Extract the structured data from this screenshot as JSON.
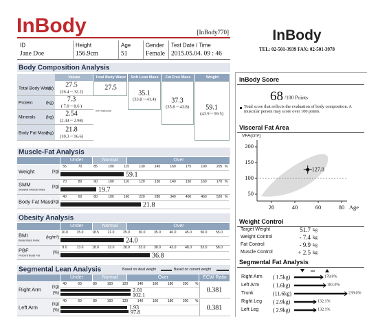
{
  "header": {
    "logo": "InBody",
    "model": "[InBody770]",
    "logo_right": "InBody",
    "contact": "TEL: 02-501-3939   FAX: 02-501-3978"
  },
  "patient": {
    "labels": [
      "ID",
      "Height",
      "Age",
      "Gender",
      "Test Date / Time"
    ],
    "values": [
      "Jane Doe",
      "156.9cm",
      "51",
      "Female",
      "2015.05.04. 09 : 46"
    ]
  },
  "body_composition": {
    "title": "Body Composition Analysis",
    "columns": [
      "Values",
      "Total Body Water",
      "Soft Lean Mass",
      "Fat Free Mass",
      "Weight"
    ],
    "rows": [
      {
        "name": "Total Body Water",
        "unit": "(L)",
        "value": "27.5",
        "range": "(26.4 ~ 32.2)"
      },
      {
        "name": "Protein",
        "unit": "(kg)",
        "value": "7.3",
        "range": "( 7.0 ~ 8.6 )"
      },
      {
        "name": "Minerals",
        "unit": "(kg)",
        "value": "2.54",
        "range": "(2.44 ~ 2.98)"
      },
      {
        "name": "Body Fat Mass",
        "unit": "(kg)",
        "value": "21.8",
        "range": "(10.3 ~ 16.6)"
      }
    ],
    "tbw": "27.5",
    "slm": {
      "value": "35.1",
      "range": "(33.8 ~ 41.4)"
    },
    "ffm": {
      "value": "37.3",
      "range": "(35.8 ~ 43.8)"
    },
    "weight": {
      "value": "59.1",
      "range": "(43.9 ~ 59.5)"
    },
    "note": "non-osseous"
  },
  "muscle_fat": {
    "title": "Muscle-Fat Analysis",
    "bands": [
      "Under",
      "Normal",
      "Over"
    ],
    "rows": [
      {
        "name": "Weight",
        "unit": "(kg)",
        "scale": [
          "55",
          "70",
          "85",
          "100",
          "115",
          "130",
          "145",
          "160",
          "175",
          "190",
          "205"
        ],
        "pct": "%",
        "value": "59.1"
      },
      {
        "name": "SMM",
        "sub": "Skeletal Muscle Mass",
        "unit": "(kg)",
        "scale": [
          "70",
          "80",
          "90",
          "100",
          "110",
          "120",
          "130",
          "140",
          "150",
          "160",
          "170"
        ],
        "pct": "%",
        "value": "19.7"
      },
      {
        "name": "Body Fat Mass",
        "unit": "(kg)",
        "scale": [
          "40",
          "60",
          "80",
          "100",
          "160",
          "220",
          "280",
          "340",
          "400",
          "460",
          "520"
        ],
        "pct": "%",
        "value": "21.8"
      }
    ]
  },
  "obesity": {
    "title": "Obesity Analysis",
    "bands": [
      "Under",
      "Normal",
      "Over"
    ],
    "rows": [
      {
        "name": "BMI",
        "sub": "Body Mass Index",
        "unit": "(kg/m²)",
        "scale": [
          "10.0",
          "15.0",
          "18.5",
          "21.0",
          "25.0",
          "30.0",
          "35.0",
          "40.0",
          "45.0",
          "50.0",
          "55.0"
        ],
        "value": "24.0"
      },
      {
        "name": "PBF",
        "sub": "Percent Body Fat",
        "unit": "(%)",
        "scale": [
          "8.0",
          "13.0",
          "18.0",
          "23.0",
          "28.0",
          "33.0",
          "38.0",
          "43.0",
          "48.0",
          "53.0",
          "58.0"
        ],
        "value": "36.8"
      }
    ]
  },
  "segmental_lean": {
    "title": "Segmental Lean Analysis",
    "legend": [
      "Based on ideal weight",
      "Based on current weight"
    ],
    "bands": [
      "Under",
      "Normal",
      "Over",
      "ECW Ratio"
    ],
    "rows": [
      {
        "name": "Right Arm",
        "units": [
          "(kg)",
          "(%)"
        ],
        "scale": [
          "40",
          "60",
          "80",
          "100",
          "120",
          "140",
          "160",
          "180",
          "200"
        ],
        "pct": "%",
        "values": [
          "2.01",
          "102.1"
        ],
        "ecw": "0.381"
      },
      {
        "name": "Left Arm",
        "units": [
          "(kg)",
          "(%)"
        ],
        "scale": [
          "40",
          "60",
          "80",
          "100",
          "120",
          "140",
          "160",
          "180",
          "200"
        ],
        "pct": "%",
        "values": [
          "1.93",
          "97.8"
        ],
        "ecw": "0.381"
      }
    ]
  },
  "inbody_score": {
    "title": "InBody Score",
    "score": "68",
    "max": "/100 Points",
    "note": "Total score that reflects the evaluation of body composition. A muscular person may score over 100 points."
  },
  "visceral_fat": {
    "title": "Visceral Fat Area",
    "y_label": "VFA(cm²)",
    "x_label": "Age",
    "yticks": [
      200,
      150,
      100,
      50
    ],
    "xticks": [
      20,
      40,
      60,
      80
    ],
    "value": 127.8
  },
  "weight_control": {
    "title": "Weight Control",
    "rows": [
      [
        "Target Weight",
        "51.7",
        "kg"
      ],
      [
        "Weight Control",
        "- 7.4",
        "kg"
      ],
      [
        "Fat Control",
        "- 9.9",
        "kg"
      ],
      [
        "Muscle Control",
        "+ 2.5",
        "kg"
      ]
    ]
  },
  "segmental_fat": {
    "title": "Segmental Fat Analysis",
    "rows": [
      [
        "Right Arm",
        "( 1.5kg)",
        "178.0%"
      ],
      [
        "Left Arm",
        "( 1.6kg)",
        "183.0%"
      ],
      [
        "Trunk",
        "(11.6kg)",
        "239.0%"
      ],
      [
        "Right Leg",
        "( 2.9kg)",
        "132.1%"
      ],
      [
        "Left Leg",
        "( 2.9kg)",
        "132.1%"
      ]
    ]
  }
}
